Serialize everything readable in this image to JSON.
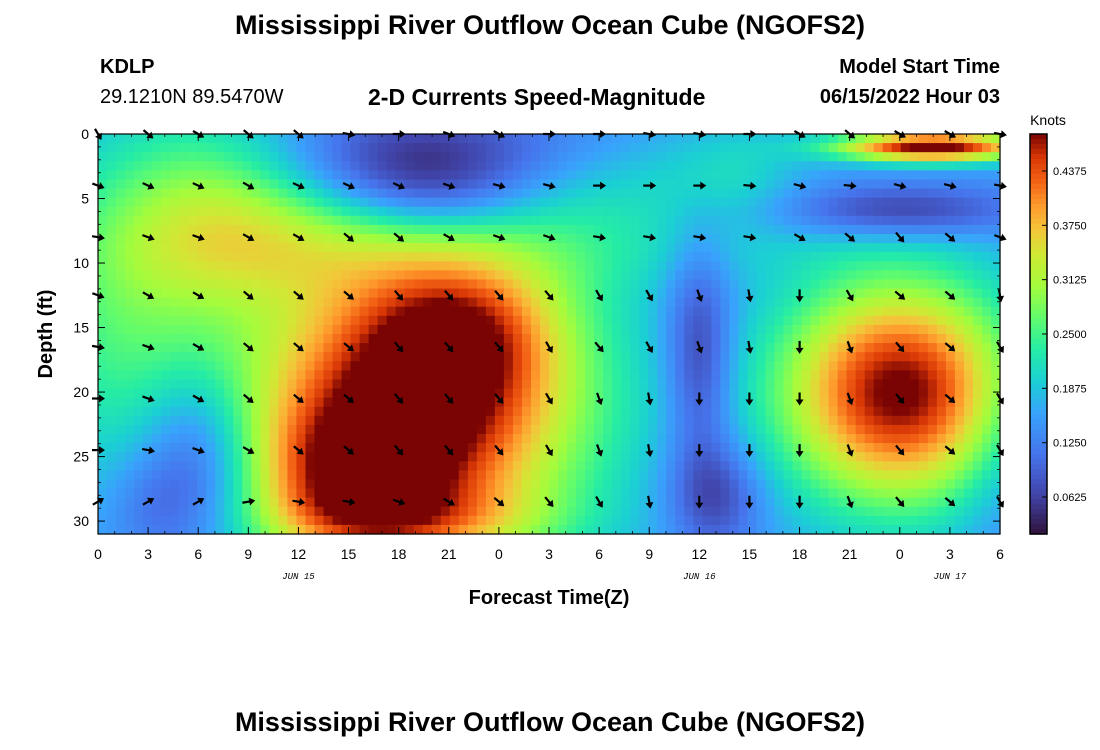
{
  "chart_data": {
    "type": "heatmap",
    "title": "Mississippi River Outflow Ocean Cube (NGOFS2)",
    "repeated_title": "Mississippi River Outflow Ocean Cube (NGOFS2)",
    "station": "KDLP",
    "coordinates": "29.1210N  89.5470W",
    "subtitle": "2-D Currents Speed-Magnitude",
    "model_start_label": "Model Start Time",
    "model_start_value": "06/15/2022 Hour 03",
    "xlabel": "Forecast Time(Z)",
    "ylabel": "Depth (ft)",
    "colorbar_label": "Knots",
    "x_range_hours": [
      0,
      54
    ],
    "y_range_ft": [
      0,
      31
    ],
    "x_ticks": [
      "0",
      "3",
      "6",
      "9",
      "12",
      "15",
      "18",
      "21",
      "0",
      "3",
      "6",
      "9",
      "12",
      "15",
      "18",
      "21",
      "0",
      "3",
      "6"
    ],
    "y_ticks": [
      "0",
      "5",
      "10",
      "15",
      "20",
      "25",
      "30"
    ],
    "date_labels": [
      {
        "text": "JUN 15",
        "hour": 12
      },
      {
        "text": "JUN 16",
        "hour": 36
      },
      {
        "text": "JUN 17",
        "hour": 51
      }
    ],
    "colorbar_range": [
      0.02,
      0.48
    ],
    "colorbar_ticks": [
      "0.0625",
      "0.1250",
      "0.1875",
      "0.2500",
      "0.3125",
      "0.3750",
      "0.4375"
    ],
    "colorbar_tick_values": [
      0.0625,
      0.125,
      0.1875,
      0.25,
      0.3125,
      0.375,
      0.4375
    ],
    "speed_field": {
      "background": 0.15,
      "features": [
        {
          "hour": 8,
          "depth": 5,
          "sh": 5,
          "sd": 5,
          "amp": 0.12
        },
        {
          "hour": 2,
          "depth": 14,
          "sh": 5,
          "sd": 9,
          "amp": 0.1
        },
        {
          "hour": 12,
          "depth": 9,
          "sh": 7,
          "sd": 3,
          "amp": 0.06
        },
        {
          "hour": 19,
          "depth": 21,
          "sh": 7,
          "sd": 8,
          "amp": 0.36
        },
        {
          "hour": 15,
          "depth": 27,
          "sh": 4,
          "sd": 4,
          "amp": 0.15
        },
        {
          "hour": 22,
          "depth": 15,
          "sh": 4,
          "sd": 4,
          "amp": 0.12
        },
        {
          "hour": 19,
          "depth": 30,
          "sh": 6,
          "sd": 2,
          "amp": 0.08
        },
        {
          "hour": 6,
          "depth": 25,
          "sh": 2.5,
          "sd": 5,
          "amp": -0.11
        },
        {
          "hour": 3,
          "depth": 29,
          "sh": 2,
          "sd": 3,
          "amp": -0.04
        },
        {
          "hour": 19,
          "depth": 2,
          "sh": 7,
          "sd": 3,
          "amp": -0.12
        },
        {
          "hour": 20,
          "depth": 5,
          "sh": 4,
          "sd": 2,
          "amp": -0.04
        },
        {
          "hour": 30,
          "depth": 4,
          "sh": 5,
          "sd": 3,
          "amp": 0.05
        },
        {
          "hour": 38,
          "depth": 3,
          "sh": 3,
          "sd": 3,
          "amp": 0.05
        },
        {
          "hour": 29,
          "depth": 9,
          "sh": 5,
          "sd": 3,
          "amp": 0.04
        },
        {
          "hour": 42,
          "depth": 9,
          "sh": 6,
          "sd": 2,
          "amp": 0.02
        },
        {
          "hour": 36,
          "depth": 17,
          "sh": 1.4,
          "sd": 6,
          "amp": -0.1
        },
        {
          "hour": 37,
          "depth": 28,
          "sh": 2,
          "sd": 3,
          "amp": -0.09
        },
        {
          "hour": 48,
          "depth": 20,
          "sh": 5,
          "sd": 6,
          "amp": 0.34
        },
        {
          "hour": 50,
          "depth": 1,
          "sh": 4,
          "sd": 0.8,
          "amp": 0.35
        },
        {
          "hour": 48,
          "depth": 6,
          "sh": 5,
          "sd": 1.5,
          "amp": -0.1
        },
        {
          "hour": 54,
          "depth": 25,
          "sh": 2,
          "sd": 6,
          "amp": -0.04
        }
      ]
    },
    "vectors": {
      "columns_hours": [
        0,
        3,
        6,
        9,
        12,
        15,
        18,
        21,
        24,
        27,
        30,
        33,
        36,
        39,
        42,
        45,
        48,
        51,
        54
      ],
      "rows_depth_ft": [
        0,
        4,
        8,
        12.5,
        16.5,
        20.5,
        24.5,
        28.5
      ],
      "directions_deg": [
        [
          150,
          130,
          120,
          130,
          130,
          100,
          90,
          110,
          120,
          90,
          90,
          100,
          100,
          90,
          120,
          130,
          120,
          120,
          100
        ],
        [
          110,
          115,
          115,
          120,
          115,
          115,
          115,
          110,
          105,
          105,
          90,
          90,
          90,
          95,
          105,
          95,
          105,
          105,
          100
        ],
        [
          100,
          110,
          110,
          120,
          120,
          130,
          130,
          120,
          110,
          110,
          100,
          100,
          100,
          100,
          120,
          130,
          140,
          130,
          110
        ],
        [
          110,
          120,
          120,
          130,
          130,
          130,
          140,
          140,
          140,
          140,
          150,
          150,
          160,
          170,
          180,
          150,
          130,
          130,
          170
        ],
        [
          100,
          110,
          120,
          130,
          130,
          130,
          140,
          140,
          140,
          150,
          140,
          150,
          160,
          170,
          180,
          160,
          140,
          130,
          150
        ],
        [
          90,
          110,
          120,
          130,
          130,
          130,
          140,
          140,
          140,
          150,
          160,
          170,
          180,
          180,
          180,
          160,
          140,
          130,
          150
        ],
        [
          90,
          100,
          110,
          120,
          130,
          130,
          140,
          140,
          140,
          150,
          160,
          170,
          180,
          180,
          180,
          160,
          140,
          130,
          150
        ],
        [
          60,
          60,
          60,
          80,
          100,
          100,
          110,
          120,
          130,
          140,
          150,
          170,
          180,
          180,
          180,
          160,
          140,
          130,
          150
        ]
      ]
    }
  }
}
